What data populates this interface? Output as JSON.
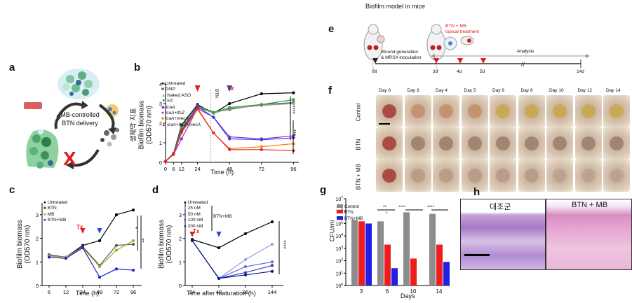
{
  "panel_labels": {
    "a": "a",
    "b": "b",
    "c": "c",
    "d": "d",
    "e": "e",
    "f": "f",
    "g": "g",
    "h": "h"
  },
  "panel_a": {
    "center_text": "MB-controlled BTN delivery"
  },
  "panel_b": {
    "ylabel_korean": "생체막 지표",
    "ylabel": "Biofilm biomass",
    "ylabel_units": "(OD570 nm)",
    "xlabel": "Time (h)",
    "tx_label": "Tx",
    "btn_label": "BTN",
    "legend": [
      "Untreated",
      "GNP",
      "Naked ASO",
      "NT",
      "icaA",
      "icaA+ftsZ",
      "icaA+mecA",
      "icaA+ftsZ+mecA"
    ],
    "sig": [
      "****",
      "***"
    ]
  },
  "panel_c": {
    "ylabel": "Biofilm biomass",
    "ylabel_units": "(OD570 nm)",
    "xlabel": "Time (h)",
    "tx_label": "Tx",
    "legend": [
      "Untreated",
      "BTN",
      "MB",
      "BTN+MB"
    ],
    "sig": [
      "*",
      "**"
    ]
  },
  "panel_d": {
    "ylabel": "Biofilm biomass",
    "ylabel_units": "(OD570 nm)",
    "xlabel": "Time after maturation (h)",
    "tx_label": "Tx",
    "group_label": "BTN+MB",
    "legend": [
      "Untreated",
      "25 nM",
      "50 nM",
      "100 nM",
      "200 nM"
    ],
    "sig": [
      "****"
    ]
  },
  "panel_e": {
    "title": "Biofilm model in mice",
    "wound_text_1": "Wound generation",
    "wound_text_2": "& MRSA inoculation",
    "treatment_1": "BTN + MB",
    "treatment_2": "topical treatment",
    "analysis": "Analysis",
    "days": [
      "0d",
      "3d",
      "4d",
      "5d",
      "14d"
    ]
  },
  "panel_f": {
    "days": [
      "Day 0",
      "Day 3",
      "Day 4",
      "Day 5",
      "Day 6",
      "Day 8",
      "Day 10",
      "Day 12",
      "Day 14"
    ],
    "rows": [
      "Control",
      "BTN",
      "BTN + MB"
    ]
  },
  "panel_g": {
    "ylabel": "CFU/ml",
    "xlabel": "Days",
    "legend": [
      "Control",
      "BTN",
      "BTN+MB"
    ],
    "sig": [
      "**",
      "*",
      "****",
      "****"
    ]
  },
  "panel_h": {
    "left_label": "대조군",
    "right_label": "BTN + MB"
  },
  "colors": {
    "untreated": "#000000",
    "gnp": "#555555",
    "naked_aso": "#9a9a9a",
    "nt": "#2e9e3a",
    "icaA": "#8a2be2",
    "icaA_ftsZ": "#3b3bd6",
    "icaA_mecA": "#ff7f0e",
    "icaA_ftsZ_mecA": "#e32222",
    "mb": "#a6a61e",
    "btn_mb": "#1f1fd6",
    "red_arrow": "#e31a1c",
    "blue_arrow": "#2c4bd6"
  },
  "chart_data": [
    {
      "id": "b",
      "type": "line",
      "x": [
        0,
        6,
        12,
        24,
        36,
        48,
        72,
        96
      ],
      "xlim": [
        0,
        100
      ],
      "ylim": [
        0,
        4
      ],
      "xticks": [
        0,
        6,
        12,
        24,
        48,
        72,
        96
      ],
      "yticks": [
        0,
        1,
        2,
        3,
        4
      ],
      "series": [
        {
          "name": "Untreated",
          "color": "#000000",
          "values": [
            0.05,
            0.45,
            1.9,
            2.95,
            2.5,
            3.0,
            3.5,
            3.55
          ]
        },
        {
          "name": "GNP",
          "color": "#555555",
          "values": [
            0.05,
            0.42,
            1.85,
            2.9,
            2.55,
            2.7,
            2.95,
            3.05
          ]
        },
        {
          "name": "Naked ASO",
          "color": "#9a9a9a",
          "values": [
            0.05,
            0.4,
            1.7,
            2.85,
            2.5,
            2.75,
            2.9,
            3.0
          ]
        },
        {
          "name": "NT",
          "color": "#2e9e3a",
          "values": [
            0.05,
            0.43,
            1.75,
            2.8,
            2.55,
            2.8,
            2.95,
            3.2
          ]
        },
        {
          "name": "icaA",
          "color": "#8a2be2",
          "values": [
            0.05,
            0.4,
            1.2,
            2.75,
            2.3,
            1.3,
            1.2,
            1.35
          ]
        },
        {
          "name": "icaA+ftsZ",
          "color": "#3b3bd6",
          "values": [
            0.05,
            0.45,
            1.6,
            2.85,
            2.3,
            1.2,
            1.15,
            1.25
          ]
        },
        {
          "name": "icaA+mecA",
          "color": "#ff7f0e",
          "values": [
            0.05,
            0.4,
            1.5,
            2.7,
            1.5,
            0.7,
            0.8,
            0.95
          ]
        },
        {
          "name": "icaA+ftsZ+mecA",
          "color": "#e32222",
          "values": [
            0.05,
            0.42,
            1.55,
            2.75,
            1.5,
            0.65,
            0.65,
            0.6
          ]
        }
      ]
    },
    {
      "id": "c",
      "type": "line",
      "x": [
        6,
        12,
        24,
        48,
        72,
        96
      ],
      "ylim": [
        0,
        3.5
      ],
      "yticks": [
        0,
        1,
        2,
        3
      ],
      "series": [
        {
          "name": "Untreated",
          "color": "#000000",
          "values": [
            1.3,
            1.2,
            1.7,
            1.9,
            3.0,
            3.2
          ]
        },
        {
          "name": "BTN",
          "color": "#555555",
          "values": [
            1.3,
            1.2,
            1.65,
            0.85,
            1.7,
            1.75
          ]
        },
        {
          "name": "MB",
          "color": "#a6a61e",
          "values": [
            1.25,
            1.2,
            1.6,
            0.8,
            1.5,
            1.9
          ]
        },
        {
          "name": "BTN+MB",
          "color": "#1f1fd6",
          "values": [
            1.2,
            1.15,
            1.6,
            0.35,
            0.7,
            0.65
          ]
        }
      ]
    },
    {
      "id": "d",
      "type": "line",
      "x": [
        24,
        48,
        96,
        144
      ],
      "ylim": [
        0,
        3.5
      ],
      "yticks": [
        0,
        1,
        2,
        3
      ],
      "series": [
        {
          "name": "Untreated",
          "color": "#000000",
          "values": [
            1.95,
            1.6,
            2.2,
            2.7
          ]
        },
        {
          "name": "25 nM",
          "color": "#8fa0e8",
          "values": [
            1.9,
            0.3,
            1.1,
            1.75
          ]
        },
        {
          "name": "50 nM",
          "color": "#5b6fd6",
          "values": [
            1.9,
            0.3,
            0.8,
            1.0
          ]
        },
        {
          "name": "100 nM",
          "color": "#2c3fc0",
          "values": [
            1.9,
            0.3,
            0.55,
            0.85
          ]
        },
        {
          "name": "200 nM",
          "color": "#0a1880",
          "values": [
            1.9,
            0.3,
            0.45,
            0.6
          ]
        }
      ]
    },
    {
      "id": "g",
      "type": "bar",
      "categories": [
        "3",
        "6",
        "10",
        "14"
      ],
      "yscale": "log",
      "yticks_label": [
        "10^0",
        "10^1",
        "10^2",
        "10^3",
        "10^4",
        "10^5",
        "10^6",
        "10^7"
      ],
      "series": [
        {
          "name": "Control",
          "color": "#8c8c8c",
          "values": [
            200000,
            150000,
            800000,
            600000
          ]
        },
        {
          "name": "BTN",
          "color": "#ee1c1c",
          "values": [
            150000,
            2000,
            150,
            2000
          ]
        },
        {
          "name": "BTN+MB",
          "color": "#1f1fe6",
          "values": [
            100000,
            25,
            1,
            80
          ]
        }
      ]
    }
  ]
}
